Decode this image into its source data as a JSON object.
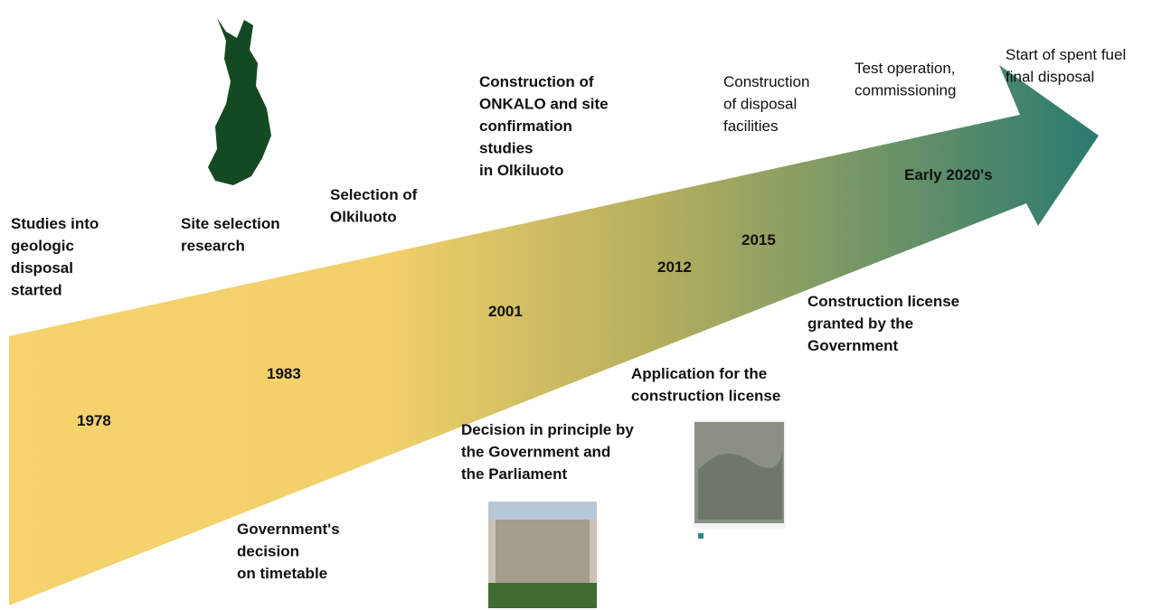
{
  "top_labels": [
    {
      "lines": [
        "Studies into",
        "geologic",
        "disposal",
        "started"
      ]
    },
    {
      "lines": [
        "Site selection",
        "research"
      ]
    },
    {
      "lines": [
        "Selection of",
        "Olkiluoto"
      ]
    },
    {
      "lines": [
        "Construction of",
        "ONKALO and site",
        "confirmation",
        "studies",
        "in Olkiluoto"
      ]
    },
    {
      "lines": [
        "Construction",
        "of disposal",
        "facilities"
      ]
    },
    {
      "lines": [
        "Test operation,",
        "commissioning"
      ]
    },
    {
      "lines": [
        "Start of spent fuel",
        "final disposal"
      ]
    }
  ],
  "years": [
    "1978",
    "1983",
    "2001",
    "2012",
    "2015",
    "Early 2020's"
  ],
  "bottom_labels": [
    {
      "lines": [
        "Government's",
        "decision",
        "on timetable"
      ]
    },
    {
      "lines": [
        "Decision in principle by",
        "the Government and",
        "the Parliament"
      ]
    },
    {
      "lines": [
        "Application for the",
        "construction license"
      ]
    },
    {
      "lines": [
        "Construction license",
        "granted by the",
        "Government"
      ]
    }
  ]
}
